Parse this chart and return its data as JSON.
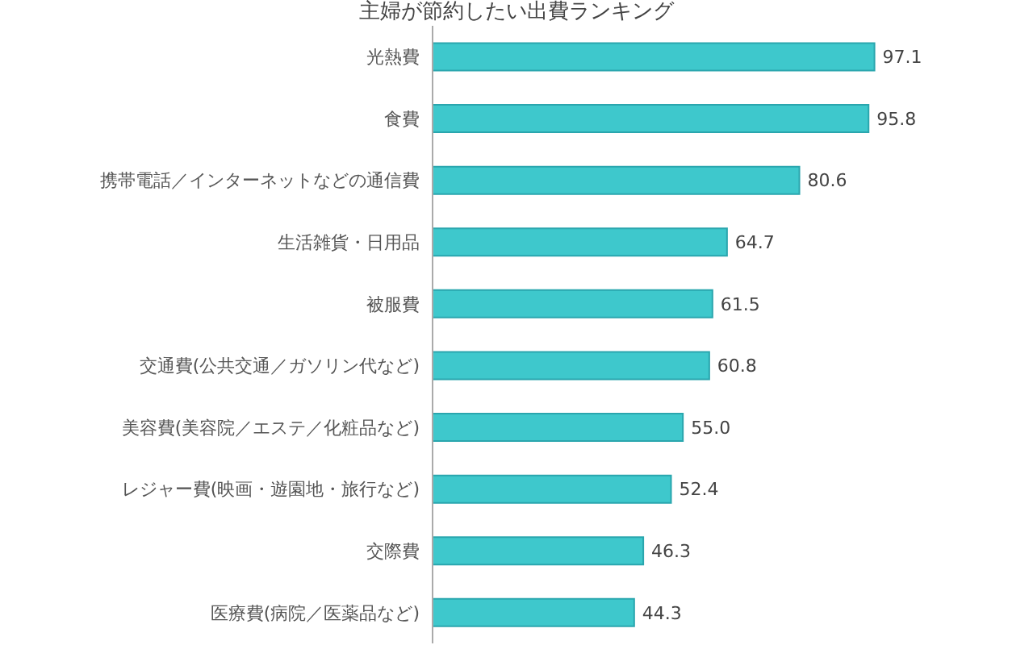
{
  "chart_data": {
    "type": "bar",
    "orientation": "horizontal",
    "title": "主婦が節約したい出費ランキング",
    "categories": [
      "光熱費",
      "食費",
      "携帯電話／インターネットなどの通信費",
      "生活雑貨・日用品",
      "被服費",
      "交通費(公共交通／ガソリン代など)",
      "美容費(美容院／エステ／化粧品など)",
      "レジャー費(映画・遊園地・旅行など)",
      "交際費",
      "医療費(病院／医薬品など)"
    ],
    "values": [
      97.1,
      95.8,
      80.6,
      64.7,
      61.5,
      60.8,
      55.0,
      52.4,
      46.3,
      44.3
    ],
    "value_labels": [
      "97.1",
      "95.8",
      "80.6",
      "64.7",
      "61.5",
      "60.8",
      "55.0",
      "52.4",
      "46.3",
      "44.3"
    ],
    "color": "#3ec8cc",
    "tick_labels": "y",
    "legend": false
  }
}
